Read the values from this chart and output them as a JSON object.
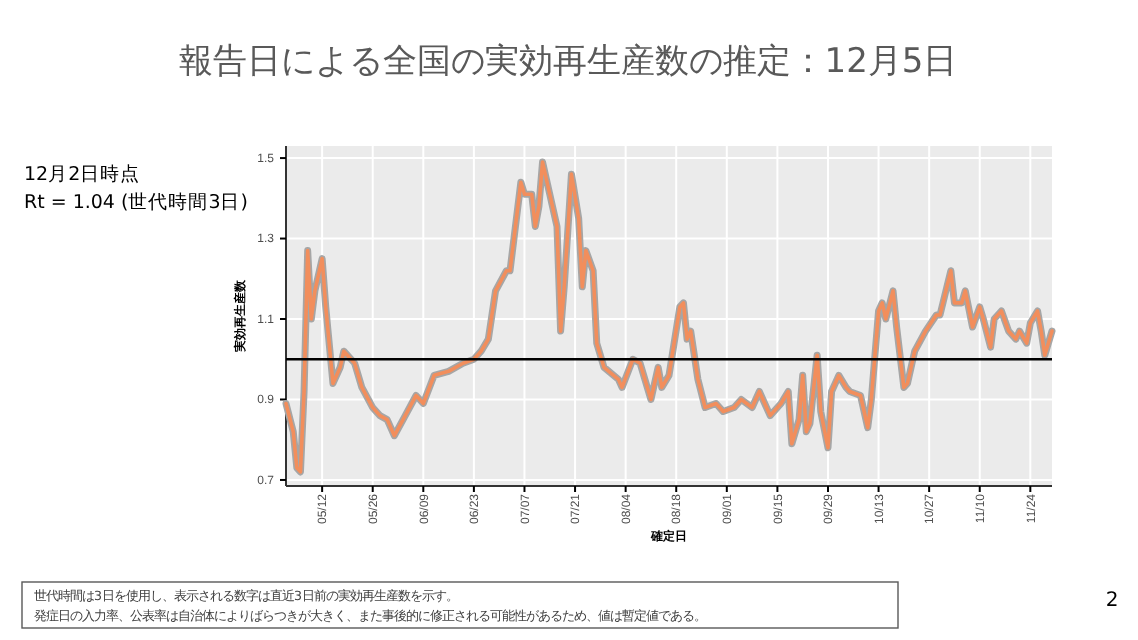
{
  "chart_data": {
    "type": "line",
    "title": "報告日による全国の実効再生産数の推定：12月5日",
    "xlabel": "確定日",
    "ylabel": "実効再生産数",
    "annotations": [
      "12月2日時点",
      "Rt = 1.04 (世代時間3日)",
      "世代時間は3日を使用し、表示される数字は直近3日前の実効再生産数を示す。",
      "発症日の入力率、公表率は自治体によりばらつきが大きく、また事後的に修正される可能性があるため、値は暫定値である。",
      "2"
    ],
    "x": [
      "--05-02",
      "--05-04",
      "--05-05",
      "--05-06",
      "--05-07",
      "--05-08",
      "--05-09",
      "--05-10",
      "--05-12",
      "--05-13",
      "--05-15",
      "--05-17",
      "--05-18",
      "--05-21",
      "--05-23",
      "--05-26",
      "--05-28",
      "--05-30",
      "--06-01",
      "--06-04",
      "--06-07",
      "--06-09",
      "--06-12",
      "--06-16",
      "--06-20",
      "--06-23",
      "--06-25",
      "--06-27",
      "--06-29",
      "--07-02",
      "--07-03",
      "--07-06",
      "--07-07",
      "--07-09",
      "--07-10",
      "--07-11",
      "--07-12",
      "--07-14",
      "--07-16",
      "--07-17",
      "--07-18",
      "--07-20",
      "--07-22",
      "--07-23",
      "--07-24",
      "--07-26",
      "--07-27",
      "--07-29",
      "--08-02",
      "--08-03",
      "--08-06",
      "--08-08",
      "--08-10",
      "--08-11",
      "--08-13",
      "--08-14",
      "--08-16",
      "--08-19",
      "--08-20",
      "--08-21",
      "--08-22",
      "--08-24",
      "--08-26",
      "--08-29",
      "--08-31",
      "--09-03",
      "--09-05",
      "--09-08",
      "--09-10",
      "--09-13",
      "--09-16",
      "--09-18",
      "--09-19",
      "--09-21",
      "--09-22",
      "--09-23",
      "--09-24",
      "--09-26",
      "--09-27",
      "--09-29",
      "--09-30",
      "--10-02",
      "--10-04",
      "--10-05",
      "--10-08",
      "--10-10",
      "--10-11",
      "--10-13",
      "--10-14",
      "--10-15",
      "--10-17",
      "--10-18",
      "--10-20",
      "--10-21",
      "--10-23",
      "--10-26",
      "--10-29",
      "--10-30",
      "--11-02",
      "--11-03",
      "--11-05",
      "--11-06",
      "--11-08",
      "--11-10",
      "--11-11",
      "--11-13",
      "--11-14",
      "--11-16",
      "--11-18",
      "--11-20",
      "--11-21",
      "--11-23",
      "--11-24",
      "--11-26",
      "--11-27",
      "--11-28",
      "--11-30"
    ],
    "series": [
      {
        "color": "#a6a6a6",
        "values": [
          0.89,
          0.82,
          0.73,
          0.72,
          0.92,
          1.27,
          1.1,
          1.17,
          1.25,
          1.13,
          0.94,
          0.98,
          1.02,
          0.99,
          0.93,
          0.88,
          0.86,
          0.85,
          0.81,
          0.86,
          0.91,
          0.89,
          0.96,
          0.97,
          0.99,
          1.0,
          1.02,
          1.05,
          1.17,
          1.22,
          1.22,
          1.44,
          1.41,
          1.41,
          1.33,
          1.38,
          1.49,
          1.41,
          1.33,
          1.07,
          1.18,
          1.46,
          1.35,
          1.18,
          1.27,
          1.22,
          1.04,
          0.98,
          0.95,
          0.93,
          1.0,
          0.99,
          0.93,
          0.9,
          0.98,
          0.93,
          0.96,
          1.13,
          1.14,
          1.05,
          1.07,
          0.95,
          0.88,
          0.89,
          0.87,
          0.88,
          0.9,
          0.88,
          0.92,
          0.86,
          0.89,
          0.92,
          0.79,
          0.85,
          0.96,
          0.82,
          0.84,
          1.01,
          0.87,
          0.78,
          0.92,
          0.96,
          0.93,
          0.92,
          0.91,
          0.83,
          0.9,
          1.12,
          1.14,
          1.1,
          1.17,
          1.08,
          0.93,
          0.94,
          1.02,
          1.07,
          1.11,
          1.11,
          1.22,
          1.14,
          1.14,
          1.17,
          1.08,
          1.13,
          1.1,
          1.03,
          1.1,
          1.12,
          1.07,
          1.05,
          1.07,
          1.04,
          1.09,
          1.12,
          1.07,
          1.01,
          1.07
        ]
      },
      {
        "color": "#f28e5c",
        "values": [
          0.89,
          0.82,
          0.73,
          0.72,
          0.92,
          1.27,
          1.1,
          1.17,
          1.25,
          1.13,
          0.94,
          0.98,
          1.02,
          0.99,
          0.93,
          0.88,
          0.86,
          0.85,
          0.81,
          0.86,
          0.91,
          0.89,
          0.96,
          0.97,
          0.99,
          1.0,
          1.02,
          1.05,
          1.17,
          1.22,
          1.22,
          1.44,
          1.41,
          1.41,
          1.33,
          1.38,
          1.49,
          1.41,
          1.33,
          1.07,
          1.18,
          1.46,
          1.35,
          1.18,
          1.27,
          1.22,
          1.04,
          0.98,
          0.95,
          0.93,
          1.0,
          0.99,
          0.93,
          0.9,
          0.98,
          0.93,
          0.96,
          1.13,
          1.14,
          1.05,
          1.07,
          0.95,
          0.88,
          0.89,
          0.87,
          0.88,
          0.9,
          0.88,
          0.92,
          0.86,
          0.89,
          0.92,
          0.79,
          0.85,
          0.96,
          0.82,
          0.84,
          1.01,
          0.87,
          0.78,
          0.92,
          0.96,
          0.93,
          0.92,
          0.91,
          0.83,
          0.9,
          1.12,
          1.14,
          1.1,
          1.17,
          1.08,
          0.93,
          0.94,
          1.02,
          1.07,
          1.11,
          1.11,
          1.22,
          1.14,
          1.14,
          1.17,
          1.08,
          1.13,
          1.1,
          1.03,
          1.1,
          1.12,
          1.07,
          1.05,
          1.07,
          1.04,
          1.09,
          1.12,
          1.07,
          1.01,
          1.07
        ]
      }
    ],
    "xlim": [
      "--05-02",
      "--11-30"
    ],
    "xticks": [
      {
        "value": "--05-12",
        "label": "05/12"
      },
      {
        "value": "--05-26",
        "label": "05/26"
      },
      {
        "value": "--06-09",
        "label": "06/09"
      },
      {
        "value": "--06-23",
        "label": "06/23"
      },
      {
        "value": "--07-07",
        "label": "07/07"
      },
      {
        "value": "--07-21",
        "label": "07/21"
      },
      {
        "value": "--08-04",
        "label": "08/04"
      },
      {
        "value": "--08-18",
        "label": "08/18"
      },
      {
        "value": "--09-01",
        "label": "09/01"
      },
      {
        "value": "--09-15",
        "label": "09/15"
      },
      {
        "value": "--09-29",
        "label": "09/29"
      },
      {
        "value": "--10-13",
        "label": "10/13"
      },
      {
        "value": "--10-27",
        "label": "10/27"
      },
      {
        "value": "--11-10",
        "label": "11/10"
      },
      {
        "value": "--11-24",
        "label": "11/24"
      }
    ],
    "ylim": [
      0.685,
      1.53
    ],
    "yticks": [
      0.7,
      0.9,
      1.1,
      1.3,
      1.5
    ],
    "ref_lines": [
      {
        "axis": "y",
        "value": 1,
        "color": "#000000"
      }
    ],
    "grid": true
  }
}
